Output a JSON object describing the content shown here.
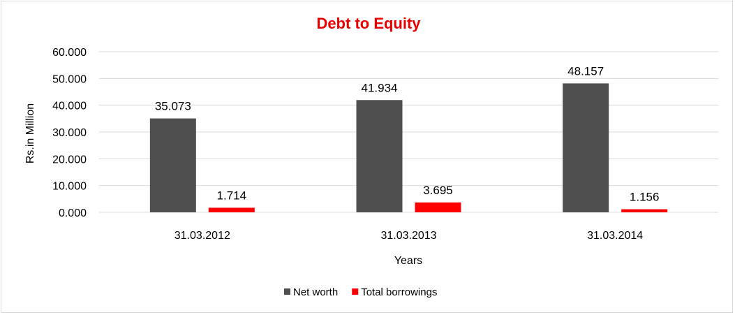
{
  "chart_data": {
    "type": "bar",
    "title": "Debt to Equity",
    "xlabel": "Years",
    "ylabel": "Rs.in Million",
    "categories": [
      "31.03.2012",
      "31.03.2013",
      "31.03.2014"
    ],
    "series": [
      {
        "name": "Net worth",
        "values": [
          35.073,
          41.934,
          48.157
        ],
        "labels": [
          "35.073",
          "41.934",
          "48.157"
        ],
        "color": "#4f4f4f"
      },
      {
        "name": "Total borrowings",
        "values": [
          1.714,
          3.695,
          1.156
        ],
        "labels": [
          "1.714",
          "3.695",
          "1.156"
        ],
        "color": "#ff0000"
      }
    ],
    "ylim": [
      0,
      60
    ],
    "yticks": [
      0,
      10,
      20,
      30,
      40,
      50,
      60
    ],
    "ytick_labels": [
      "0.000",
      "10.000",
      "20.000",
      "30.000",
      "40.000",
      "50.000",
      "60.000"
    ],
    "grid": true,
    "legend_position": "bottom",
    "title_color": "#e60000"
  }
}
